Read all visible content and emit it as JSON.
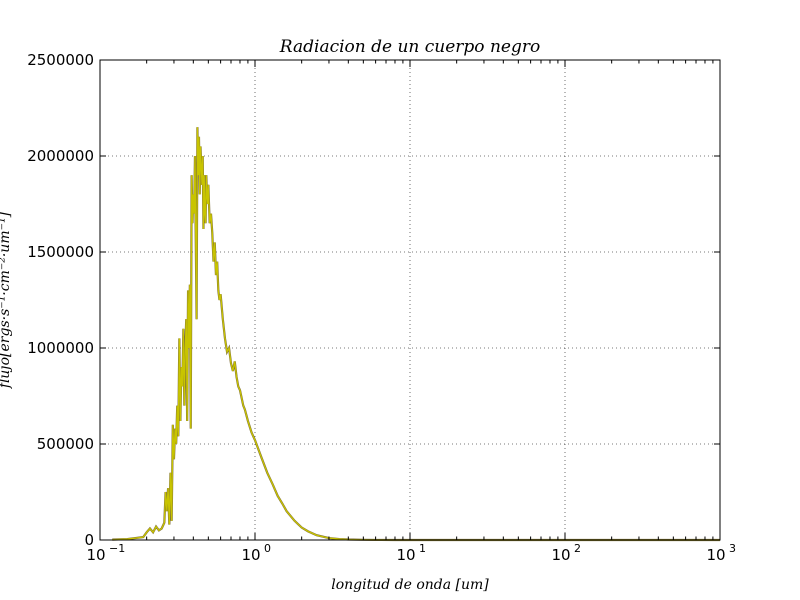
{
  "chart_data": {
    "type": "line",
    "title": "Radiacion de un cuerpo negro",
    "xlabel": "longitud de onda [um]",
    "ylabel": "flujo[ergs·s⁻¹·cm⁻²·um⁻¹]",
    "xscale": "log",
    "xlim": [
      0.1,
      1000
    ],
    "ylim": [
      0,
      2500000
    ],
    "grid": true,
    "line_color": "#c8c400",
    "line_shadow_color": "#7a6a3a",
    "x_ticks": [
      {
        "value": 0.1,
        "base": "10",
        "exp": "−1"
      },
      {
        "value": 1,
        "base": "10",
        "exp": "0"
      },
      {
        "value": 10,
        "base": "10",
        "exp": "1"
      },
      {
        "value": 100,
        "base": "10",
        "exp": "2"
      },
      {
        "value": 1000,
        "base": "10",
        "exp": "3"
      }
    ],
    "y_ticks": [
      {
        "value": 0,
        "label": "0"
      },
      {
        "value": 500000,
        "label": "500000"
      },
      {
        "value": 1000000,
        "label": "1000000"
      },
      {
        "value": 1500000,
        "label": "1500000"
      },
      {
        "value": 2000000,
        "label": "2000000"
      },
      {
        "value": 2500000,
        "label": "2500000"
      }
    ],
    "series": [
      {
        "x": [
          0.12,
          0.15,
          0.19,
          0.2,
          0.21,
          0.22,
          0.23,
          0.24,
          0.25,
          0.26,
          0.265,
          0.27,
          0.275,
          0.28,
          0.285,
          0.29,
          0.295,
          0.3,
          0.305,
          0.31,
          0.315,
          0.32,
          0.325,
          0.33,
          0.335,
          0.34,
          0.345,
          0.35,
          0.355,
          0.36,
          0.365,
          0.37,
          0.375,
          0.38,
          0.385,
          0.39,
          0.395,
          0.4,
          0.405,
          0.41,
          0.415,
          0.42,
          0.425,
          0.43,
          0.435,
          0.44,
          0.445,
          0.45,
          0.455,
          0.46,
          0.465,
          0.47,
          0.475,
          0.48,
          0.485,
          0.49,
          0.495,
          0.5,
          0.51,
          0.52,
          0.53,
          0.54,
          0.55,
          0.56,
          0.57,
          0.58,
          0.59,
          0.6,
          0.62,
          0.64,
          0.66,
          0.68,
          0.7,
          0.72,
          0.74,
          0.76,
          0.78,
          0.8,
          0.82,
          0.84,
          0.86,
          0.88,
          0.9,
          0.95,
          1.0,
          1.1,
          1.2,
          1.3,
          1.4,
          1.5,
          1.6,
          1.8,
          2.0,
          2.2,
          2.5,
          3.0,
          3.5,
          4.0,
          5.0,
          6.0,
          8.0,
          10,
          20,
          50,
          100,
          1000
        ],
        "y": [
          2000,
          5000,
          15000,
          40000,
          60000,
          40000,
          70000,
          50000,
          60000,
          90000,
          250000,
          150000,
          270000,
          80000,
          350000,
          100000,
          600000,
          420000,
          580000,
          500000,
          700000,
          540000,
          1050000,
          620000,
          900000,
          800000,
          1100000,
          700000,
          1000000,
          1150000,
          620000,
          1300000,
          1000000,
          1330000,
          580000,
          1900000,
          1650000,
          1800000,
          1700000,
          2000000,
          1550000,
          1150000,
          2150000,
          1900000,
          2100000,
          1800000,
          2050000,
          1950000,
          1850000,
          2000000,
          1620000,
          1900000,
          1700000,
          1650000,
          1900000,
          1800000,
          1750000,
          1850000,
          1650000,
          1700000,
          1600000,
          1450000,
          1550000,
          1380000,
          1450000,
          1300000,
          1250000,
          1280000,
          1150000,
          1050000,
          980000,
          1000000,
          920000,
          880000,
          930000,
          850000,
          800000,
          780000,
          740000,
          700000,
          680000,
          650000,
          620000,
          560000,
          520000,
          430000,
          350000,
          290000,
          230000,
          190000,
          150000,
          100000,
          65000,
          45000,
          25000,
          10000,
          5000,
          2500,
          1000,
          400,
          150,
          60,
          5,
          0,
          0,
          0
        ]
      }
    ]
  }
}
